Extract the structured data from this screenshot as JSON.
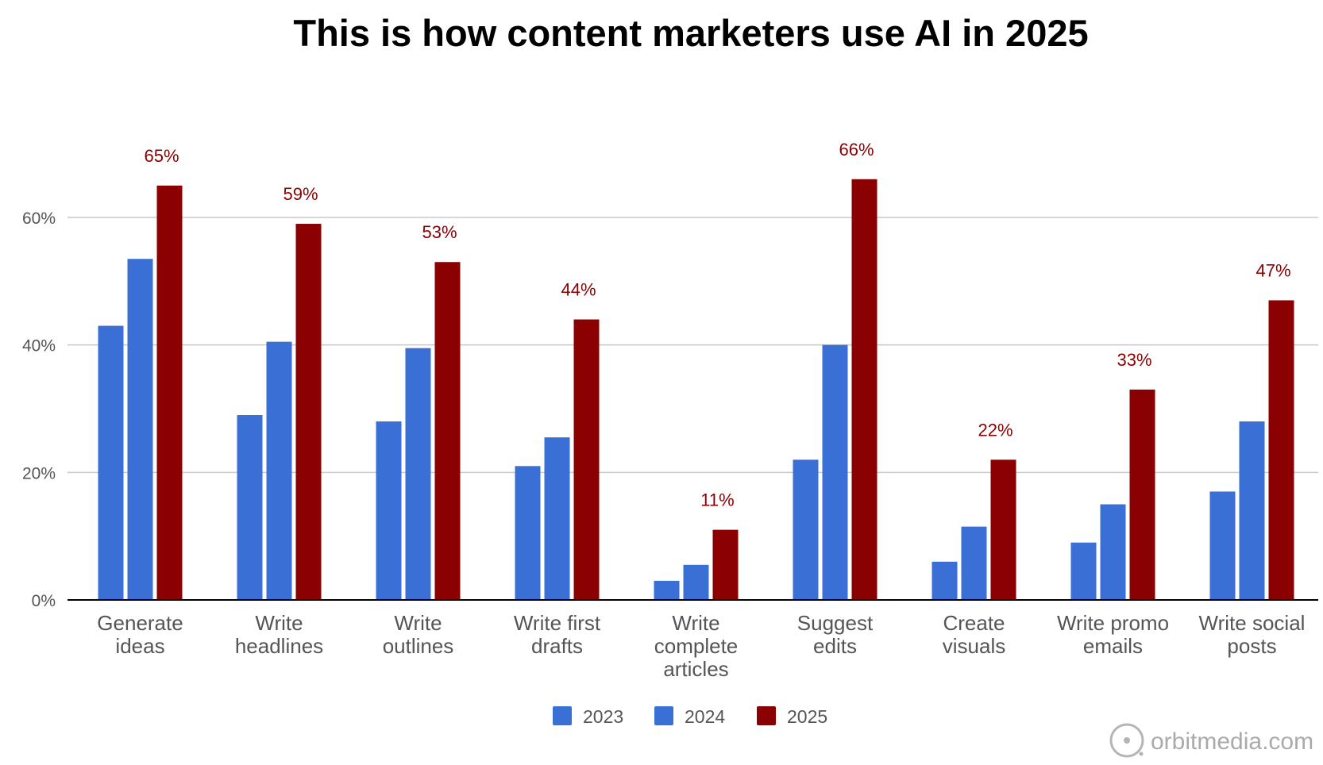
{
  "chart_data": {
    "type": "bar",
    "title": "This is how content marketers use AI in 2025",
    "categories": [
      [
        "Generate",
        "ideas"
      ],
      [
        "Write",
        "headlines"
      ],
      [
        "Write",
        "outlines"
      ],
      [
        "Write first",
        "drafts"
      ],
      [
        "Write",
        "complete",
        "articles"
      ],
      [
        "Suggest",
        "edits"
      ],
      [
        "Create",
        "visuals"
      ],
      [
        "Write promo",
        "emails"
      ],
      [
        "Write social",
        "posts"
      ]
    ],
    "series": [
      {
        "name": "2023",
        "color": "#3a6fd5",
        "values": [
          43,
          29,
          28,
          21,
          3,
          22,
          6,
          9,
          17
        ]
      },
      {
        "name": "2024",
        "color": "#3a6fd5",
        "values": [
          53.5,
          40.5,
          39.5,
          25.5,
          5.5,
          40,
          11.5,
          15,
          28
        ]
      },
      {
        "name": "2025",
        "color": "#8b0000",
        "values": [
          65,
          59,
          53,
          44,
          11,
          66,
          22,
          33,
          47
        ]
      }
    ],
    "data_labels": [
      "65%",
      "59%",
      "53%",
      "44%",
      "11%",
      "66%",
      "22%",
      "33%",
      "47%"
    ],
    "y_ticks": [
      {
        "value": 0,
        "label": "0%"
      },
      {
        "value": 20,
        "label": "20%"
      },
      {
        "value": 40,
        "label": "40%"
      },
      {
        "value": 60,
        "label": "60%"
      }
    ],
    "ylim": [
      0,
      70
    ],
    "xlabel": "",
    "ylabel": "",
    "grid": true,
    "legend_position": "bottom"
  },
  "watermark": {
    "text": "orbitmedia.com"
  },
  "colors": {
    "axis": "#000000",
    "grid": "#c8c8c8",
    "text": "#555555"
  }
}
